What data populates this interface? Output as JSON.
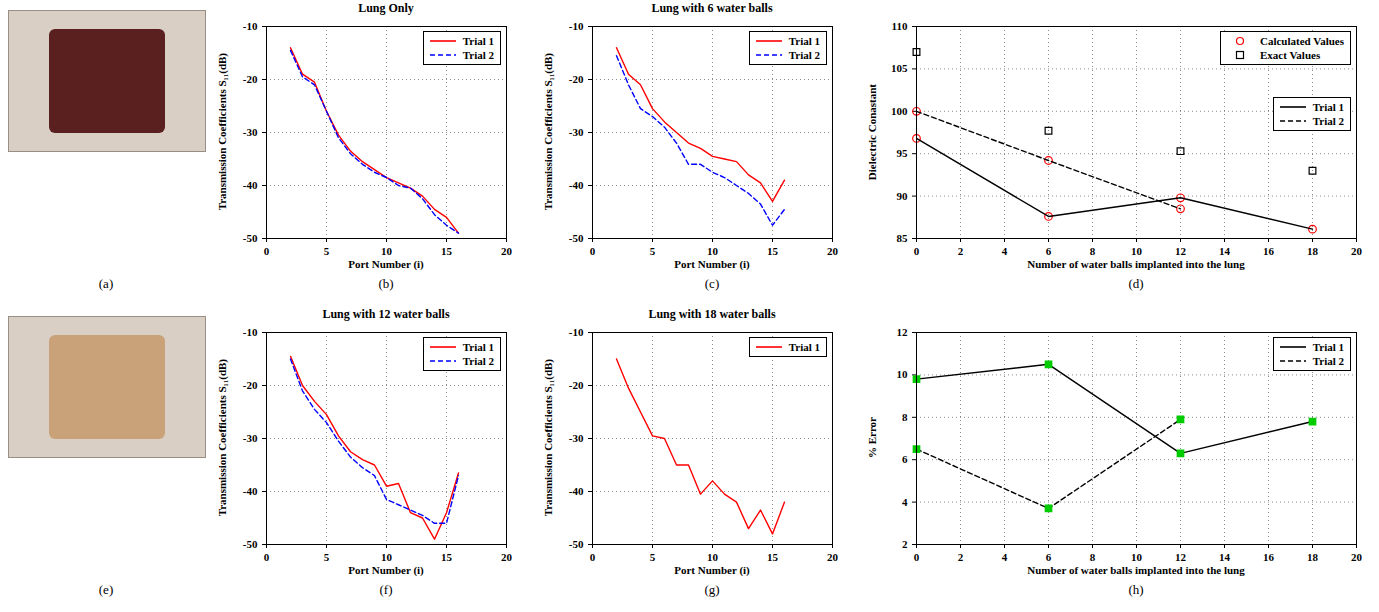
{
  "images": [
    {
      "caption": "(a)"
    },
    {
      "caption": "(e)"
    }
  ],
  "chart_data": [
    {
      "type": "line",
      "caption": "(b)",
      "title": "Lung Only",
      "x_label": "Port Number (i)",
      "y_label": "Transmission Coefficients S₁₁(dB)",
      "xlim": [
        0,
        20
      ],
      "xticks": [
        0,
        5,
        10,
        15,
        20
      ],
      "ylim": [
        -50,
        -10
      ],
      "yticks": [
        -50,
        -40,
        -30,
        -20,
        -10
      ],
      "grid": true,
      "legend": "northeast",
      "x": [
        2,
        3,
        4,
        5,
        6,
        7,
        8,
        9,
        10,
        11,
        12,
        13,
        14,
        15,
        16
      ],
      "series": [
        {
          "name": "Trial 1",
          "color": "#ff0000",
          "line_style": "solid",
          "values": [
            -14,
            -19,
            -20.5,
            -26,
            -30.5,
            -33.5,
            -35.5,
            -37,
            -38.5,
            -39.5,
            -40.5,
            -42,
            -44.5,
            -46,
            -49
          ]
        },
        {
          "name": "Trial 2",
          "color": "#0000ff",
          "line_style": "dashed",
          "values": [
            -14.5,
            -19.5,
            -21,
            -26,
            -31,
            -34,
            -36,
            -37.5,
            -38.5,
            -40,
            -40.5,
            -42.5,
            -45.5,
            -47.5,
            -49
          ]
        }
      ]
    },
    {
      "type": "line",
      "caption": "(c)",
      "title": "Lung with 6 water balls",
      "x_label": "Port Number (i)",
      "y_label": "Transmission Coefficients S₁₁(dB)",
      "xlim": [
        0,
        20
      ],
      "xticks": [
        0,
        5,
        10,
        15,
        20
      ],
      "ylim": [
        -50,
        -10
      ],
      "yticks": [
        -50,
        -40,
        -30,
        -20,
        -10
      ],
      "grid": true,
      "legend": "northeast",
      "x": [
        2,
        3,
        4,
        5,
        6,
        7,
        8,
        9,
        10,
        11,
        12,
        13,
        14,
        15,
        16
      ],
      "series": [
        {
          "name": "Trial 1",
          "color": "#ff0000",
          "line_style": "solid",
          "values": [
            -14,
            -19,
            -21,
            -25.5,
            -28,
            -30,
            -32,
            -33,
            -34.5,
            -35,
            -35.5,
            -38,
            -39.5,
            -43,
            -39
          ]
        },
        {
          "name": "Trial 2",
          "color": "#0000ff",
          "line_style": "dashed",
          "values": [
            -15.5,
            -21,
            -25.5,
            -27,
            -29,
            -32,
            -36,
            -36,
            -37.5,
            -38.5,
            -40,
            -41.5,
            -43.5,
            -47.5,
            -44.5
          ]
        }
      ]
    },
    {
      "type": "line",
      "caption": "(d)",
      "x_label": "Number of water balls implanted into the lung",
      "y_label": "Dielectric Conastant",
      "xlim": [
        0,
        20
      ],
      "xticks": [
        0,
        2,
        4,
        6,
        8,
        10,
        12,
        14,
        16,
        18,
        20
      ],
      "ylim": [
        85,
        110
      ],
      "yticks": [
        85,
        90,
        95,
        100,
        105,
        110
      ],
      "grid": true,
      "legend": "northeast",
      "series": [
        {
          "name": "Calculated Values",
          "type": "scatter",
          "marker": "circle",
          "color": "#ff0000",
          "x": [
            0,
            0,
            6,
            6,
            12,
            12,
            18
          ],
          "values": [
            96.8,
            100,
            87.6,
            94.2,
            89.8,
            88.5,
            86.1
          ]
        },
        {
          "name": "Exact Values",
          "type": "scatter",
          "marker": "square",
          "color": "#000000",
          "x": [
            0,
            6,
            12,
            18
          ],
          "values": [
            107,
            97.7,
            95.3,
            93
          ]
        },
        {
          "name": "Trial 1",
          "type": "line",
          "line_style": "solid",
          "color": "#000000",
          "x": [
            0,
            6,
            12,
            18
          ],
          "values": [
            96.8,
            87.6,
            89.8,
            86.1
          ]
        },
        {
          "name": "Trial 2",
          "type": "line",
          "line_style": "dashed",
          "color": "#000000",
          "x": [
            0,
            6,
            12
          ],
          "values": [
            100,
            94.2,
            88.5
          ]
        }
      ]
    },
    {
      "type": "line",
      "caption": "(f)",
      "title": "Lung with 12 water balls",
      "x_label": "Port Number (i)",
      "y_label": "Transmission Coefficients S₁₁(dB)",
      "xlim": [
        0,
        20
      ],
      "xticks": [
        0,
        5,
        10,
        15,
        20
      ],
      "ylim": [
        -50,
        -10
      ],
      "yticks": [
        -50,
        -40,
        -30,
        -20,
        -10
      ],
      "grid": true,
      "legend": "northeast",
      "x": [
        2,
        3,
        4,
        5,
        6,
        7,
        8,
        9,
        10,
        11,
        12,
        13,
        14,
        15,
        16
      ],
      "series": [
        {
          "name": "Trial 1",
          "color": "#ff0000",
          "line_style": "solid",
          "values": [
            -14.5,
            -20,
            -23,
            -25.5,
            -29.5,
            -32.5,
            -34,
            -35,
            -39,
            -38.5,
            -44,
            -45,
            -49,
            -44,
            -36.5
          ]
        },
        {
          "name": "Trial 2",
          "color": "#0000ff",
          "line_style": "dashed",
          "values": [
            -15,
            -21,
            -24.5,
            -27,
            -30.5,
            -33.5,
            -35.5,
            -37,
            -41.5,
            -42.5,
            -43.5,
            -44.5,
            -46,
            -46,
            -37
          ]
        }
      ]
    },
    {
      "type": "line",
      "caption": "(g)",
      "title": "Lung with 18 water balls",
      "x_label": "Port Number (i)",
      "y_label": "Transmission Coefficients S₁₁(dB)",
      "xlim": [
        0,
        20
      ],
      "xticks": [
        0,
        5,
        10,
        15,
        20
      ],
      "ylim": [
        -50,
        -10
      ],
      "yticks": [
        -50,
        -40,
        -30,
        -20,
        -10
      ],
      "grid": true,
      "legend": "northeast",
      "x": [
        2,
        3,
        4,
        5,
        6,
        7,
        8,
        9,
        10,
        11,
        12,
        13,
        14,
        15,
        16
      ],
      "series": [
        {
          "name": "Trial 1",
          "color": "#ff0000",
          "line_style": "solid",
          "values": [
            -15,
            -20.5,
            -25,
            -29.5,
            -30,
            -35,
            -35,
            -40.5,
            -38,
            -40.5,
            -42,
            -47,
            -43.5,
            -48,
            -42
          ]
        }
      ]
    },
    {
      "type": "line",
      "caption": "(h)",
      "x_label": "Number of water balls implanted into the lung",
      "y_label": "% Error",
      "xlim": [
        0,
        20
      ],
      "xticks": [
        0,
        2,
        4,
        6,
        8,
        10,
        12,
        14,
        16,
        18,
        20
      ],
      "ylim": [
        2,
        12
      ],
      "yticks": [
        2,
        4,
        6,
        8,
        10,
        12
      ],
      "grid": true,
      "legend": "northeast",
      "series": [
        {
          "name": "Trial 1",
          "line_style": "solid",
          "marker": "square",
          "color": "#000000",
          "x": [
            0,
            6,
            12,
            18
          ],
          "values": [
            9.8,
            10.5,
            6.3,
            7.8
          ]
        },
        {
          "name": "Trial 2",
          "line_style": "dashed",
          "marker": "square",
          "color": "#000000",
          "x": [
            0,
            6,
            12
          ],
          "values": [
            6.5,
            3.7,
            7.9
          ]
        }
      ]
    }
  ]
}
